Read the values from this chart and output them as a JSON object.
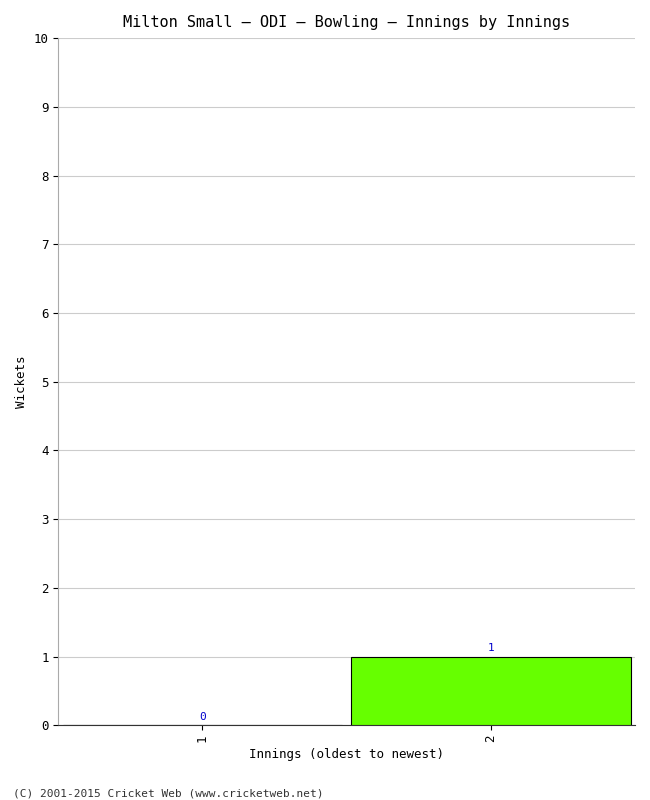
{
  "title": "Milton Small – ODI – Bowling – Innings by Innings",
  "xlabel": "Innings (oldest to newest)",
  "ylabel": "Wickets",
  "categories": [
    1,
    2
  ],
  "values": [
    0,
    1
  ],
  "bar_color": "#66ff00",
  "bar_edge_color": "#000000",
  "ylim": [
    0,
    10
  ],
  "yticks": [
    0,
    1,
    2,
    3,
    4,
    5,
    6,
    7,
    8,
    9,
    10
  ],
  "xticks": [
    1,
    2
  ],
  "background_color": "#ffffff",
  "grid_color": "#cccccc",
  "title_fontsize": 11,
  "axis_label_fontsize": 9,
  "tick_fontsize": 9,
  "annotation_fontsize": 8,
  "annotation_color": "#0000cc",
  "footer": "(C) 2001-2015 Cricket Web (www.cricketweb.net)",
  "footer_fontsize": 8,
  "bar_width": 0.97,
  "xlim": [
    0.5,
    2.5
  ]
}
